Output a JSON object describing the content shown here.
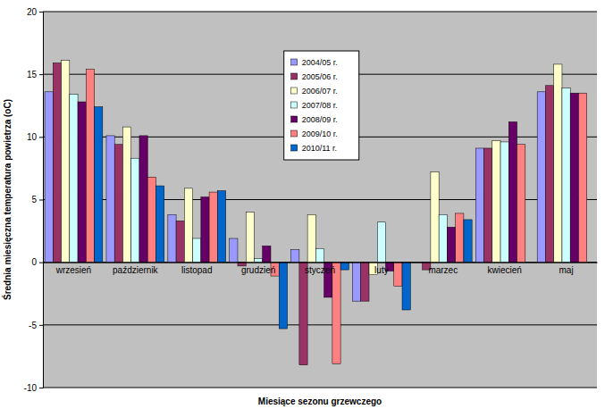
{
  "chart_data": {
    "type": "bar",
    "x_label": "Miesiące sezonu grzewczego",
    "y_label": "Średnia miesięczna temperatura powietrza (oC)",
    "categories": [
      "wrzesień",
      "październik",
      "listopad",
      "grudzień",
      "styczeń",
      "luty",
      "marzec",
      "kwiecień",
      "maj"
    ],
    "series": [
      {
        "name": "2004/05 r.",
        "color": "#9999ff",
        "values": [
          13.6,
          10.1,
          3.8,
          1.9,
          1.0,
          -3.1,
          null,
          9.1,
          13.6
        ]
      },
      {
        "name": "2005/06 r.",
        "color": "#993366",
        "values": [
          15.9,
          9.4,
          3.3,
          -0.3,
          -8.2,
          -3.1,
          -0.6,
          9.1,
          14.1
        ]
      },
      {
        "name": "2006/07 r.",
        "color": "#ffffcc",
        "values": [
          16.1,
          10.8,
          5.9,
          4.0,
          3.8,
          -1.0,
          7.2,
          9.7,
          15.8
        ]
      },
      {
        "name": "2007/08 r.",
        "color": "#ccffff",
        "values": [
          13.4,
          8.3,
          1.9,
          0.3,
          1.1,
          3.2,
          3.8,
          9.6,
          13.9
        ]
      },
      {
        "name": "2008/09 r.",
        "color": "#660066",
        "values": [
          12.8,
          10.1,
          5.2,
          1.3,
          -2.8,
          -0.7,
          2.8,
          11.2,
          13.5
        ]
      },
      {
        "name": "2009/10 r.",
        "color": "#ff8080",
        "values": [
          15.4,
          6.8,
          5.6,
          -1.1,
          -8.1,
          -1.9,
          3.9,
          9.4,
          13.5
        ]
      },
      {
        "name": "2010/11 r.",
        "color": "#0066cc",
        "values": [
          12.4,
          6.1,
          5.7,
          -5.3,
          -0.6,
          -3.8,
          3.4,
          null,
          null
        ]
      }
    ],
    "ylim": [
      -10,
      20
    ],
    "yticks": [
      -10,
      -5,
      0,
      5,
      10,
      15,
      20
    ],
    "grid": true,
    "legend": "top"
  }
}
